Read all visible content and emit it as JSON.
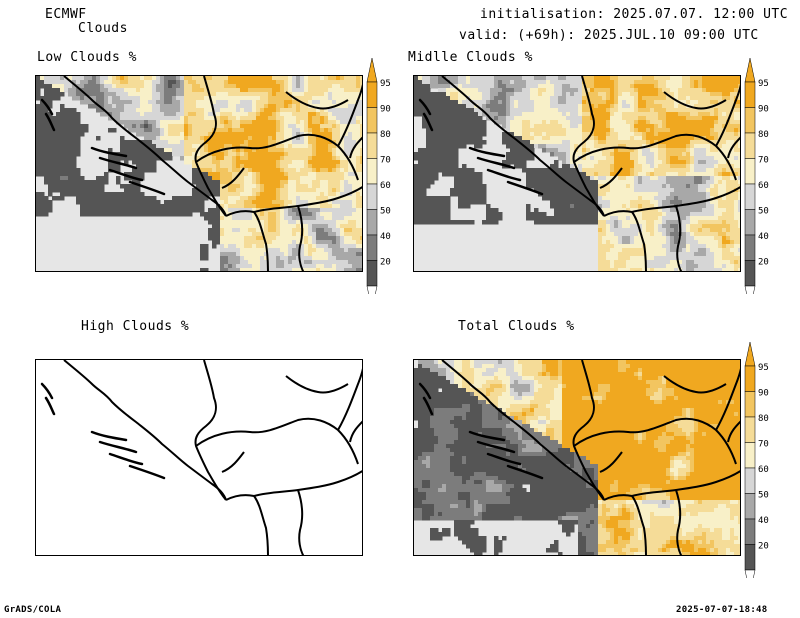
{
  "header": {
    "model": "ECMWF",
    "field": "Clouds",
    "init_line": "initialisation: 2025.07.07. 12:00 UTC",
    "valid_line": "valid: (+69h): 2025.JUL.10 09:00 UTC"
  },
  "panels": [
    {
      "id": "low",
      "title": "Low Clouds %"
    },
    {
      "id": "mid",
      "title": "Midlle Clouds %"
    },
    {
      "id": "high",
      "title": "High Clouds %"
    },
    {
      "id": "total",
      "title": "Total Clouds %"
    }
  ],
  "colorbar": {
    "levels": [
      "95",
      "90",
      "80",
      "70",
      "60",
      "50",
      "40",
      "20"
    ],
    "colors": [
      "#f0a820",
      "#f2c560",
      "#f5dc98",
      "#f8f0c8",
      "#d6d6d6",
      "#a8a8a8",
      "#7c7c7c",
      "#555555"
    ]
  },
  "footer": {
    "left": "GrADS/COLA",
    "right": "2025-07-07-18:48"
  }
}
